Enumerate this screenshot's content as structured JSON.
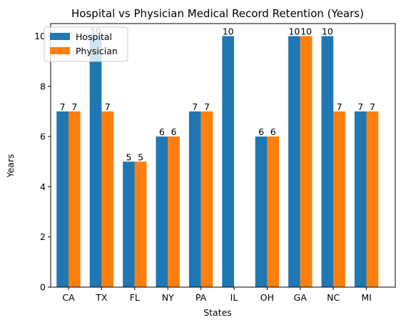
{
  "chart_data": {
    "type": "bar",
    "title": "Hospital vs Physician Medical Record Retention (Years)",
    "xlabel": "States",
    "ylabel": "Years",
    "categories": [
      "CA",
      "TX",
      "FL",
      "NY",
      "PA",
      "IL",
      "OH",
      "GA",
      "NC",
      "MI"
    ],
    "series": [
      {
        "name": "Hospital",
        "color": "#1f77b4",
        "values": [
          7,
          10,
          5,
          6,
          7,
          10,
          6,
          10,
          10,
          7
        ]
      },
      {
        "name": "Physician",
        "color": "#ff7f0e",
        "values": [
          7,
          7,
          5,
          6,
          7,
          null,
          6,
          10,
          7,
          7
        ]
      }
    ],
    "ylim": [
      0,
      10.5
    ],
    "yticks": [
      0,
      2,
      4,
      6,
      8,
      10
    ],
    "grid": false,
    "legend_position": "top-left"
  }
}
